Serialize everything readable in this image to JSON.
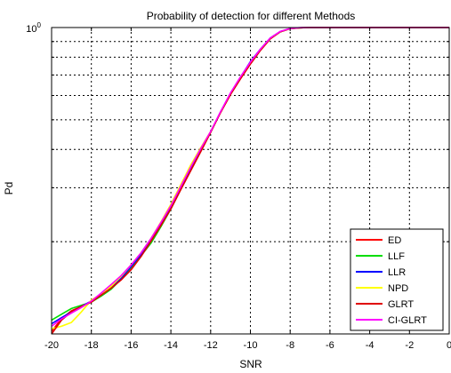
{
  "chart_data": {
    "type": "line",
    "title": "Probability of detection for different Methods",
    "xlabel": "SNR",
    "ylabel": "Pd",
    "xlim": [
      -20,
      0
    ],
    "ylim_log": [
      0.1,
      1
    ],
    "yscale": "log",
    "grid": true,
    "x_ticks": [
      "-20",
      "-18",
      "-16",
      "-14",
      "-12",
      "-10",
      "-8",
      "-6",
      "-4",
      "-2",
      "0"
    ],
    "x_tick_values": [
      -20,
      -18,
      -16,
      -14,
      -12,
      -10,
      -8,
      -6,
      -4,
      -2,
      0
    ],
    "y_ticks": [
      {
        "base": "10",
        "exp": "0",
        "value": 1
      }
    ],
    "y_grid_values": [
      0.9,
      0.8,
      0.7,
      0.6,
      0.5,
      0.4,
      0.3,
      0.2
    ],
    "legend_position": "bottom-right",
    "series": [
      {
        "name": "ED",
        "color": "#ff0000",
        "x": [
          -20,
          -19.5,
          -19,
          -18.5,
          -18,
          -17.5,
          -17,
          -16.5,
          -16,
          -15.5,
          -15,
          -14.5,
          -14,
          -13.5,
          -13,
          -12.5,
          -12,
          -11.5,
          -11,
          -10.5,
          -10,
          -9.5,
          -9,
          -8.5,
          -8,
          -7.5,
          -7,
          -6,
          -5,
          -4,
          -3,
          -2,
          -1,
          0
        ],
        "y": [
          0.102,
          0.112,
          0.119,
          0.123,
          0.127,
          0.134,
          0.142,
          0.15,
          0.163,
          0.18,
          0.202,
          0.227,
          0.257,
          0.297,
          0.342,
          0.394,
          0.456,
          0.529,
          0.605,
          0.681,
          0.761,
          0.843,
          0.92,
          0.968,
          0.992,
          0.998,
          1.0,
          1.0,
          1.0,
          1.0,
          1.0,
          1.0,
          1.0,
          1.0
        ]
      },
      {
        "name": "LLF",
        "color": "#00dd00",
        "x": [
          -20,
          -19.5,
          -19,
          -18.5,
          -18,
          -17.5,
          -17,
          -16.5,
          -16,
          -15.5,
          -15,
          -14.5,
          -14,
          -13.5,
          -13,
          -12.5,
          -12,
          -11.5,
          -11,
          -10.5,
          -10,
          -9.5,
          -9,
          -8.5,
          -8,
          -7.5,
          -7,
          -6,
          -5,
          -4,
          -3,
          -2,
          -1,
          0
        ],
        "y": [
          0.111,
          0.116,
          0.121,
          0.124,
          0.127,
          0.133,
          0.14,
          0.151,
          0.165,
          0.18,
          0.198,
          0.224,
          0.256,
          0.297,
          0.346,
          0.398,
          0.456,
          0.531,
          0.608,
          0.683,
          0.764,
          0.845,
          0.921,
          0.968,
          0.992,
          0.998,
          1.0,
          1.0,
          1.0,
          1.0,
          1.0,
          1.0,
          1.0,
          1.0
        ]
      },
      {
        "name": "LLR",
        "color": "#0000ff",
        "x": [
          -20,
          -19.5,
          -19,
          -18.5,
          -18,
          -17.5,
          -17,
          -16.5,
          -16,
          -15.5,
          -15,
          -14.5,
          -14,
          -13.5,
          -13,
          -12.5,
          -12,
          -11.5,
          -11,
          -10.5,
          -10,
          -9.5,
          -9,
          -8.5,
          -8,
          -7.5,
          -7,
          -6,
          -5,
          -4,
          -3,
          -2,
          -1,
          0
        ],
        "y": [
          0.108,
          0.113,
          0.118,
          0.123,
          0.128,
          0.134,
          0.142,
          0.152,
          0.166,
          0.182,
          0.203,
          0.229,
          0.258,
          0.298,
          0.345,
          0.397,
          0.456,
          0.53,
          0.61,
          0.688,
          0.774,
          0.85,
          0.925,
          0.97,
          0.993,
          0.998,
          1.0,
          1.0,
          1.0,
          1.0,
          1.0,
          1.0,
          1.0,
          1.0
        ]
      },
      {
        "name": "NPD",
        "color": "#ffff00",
        "x": [
          -20,
          -19.5,
          -19,
          -18.5,
          -18,
          -17.5,
          -17,
          -16.5,
          -16,
          -15.5,
          -15,
          -14.5,
          -14,
          -13.5,
          -13,
          -12.5,
          -12,
          -11.5,
          -11,
          -10.5,
          -10,
          -9.5,
          -9,
          -8.5,
          -8,
          -7.5,
          -7,
          -6,
          -5,
          -4,
          -3,
          -2,
          -1,
          0
        ],
        "y": [
          0.104,
          0.106,
          0.109,
          0.118,
          0.129,
          0.135,
          0.143,
          0.154,
          0.168,
          0.184,
          0.205,
          0.232,
          0.265,
          0.307,
          0.356,
          0.405,
          0.458,
          0.53,
          0.606,
          0.683,
          0.765,
          0.847,
          0.922,
          0.969,
          0.992,
          0.998,
          1.0,
          1.0,
          1.0,
          1.0,
          1.0,
          1.0,
          1.0,
          1.0
        ]
      },
      {
        "name": "GLRT",
        "color": "#e00000",
        "x": [
          -20,
          -19.5,
          -19,
          -18.5,
          -18,
          -17.5,
          -17,
          -16.5,
          -16,
          -15.5,
          -15,
          -14.5,
          -14,
          -13.5,
          -13,
          -12.5,
          -12,
          -11.5,
          -11,
          -10.5,
          -10,
          -9.5,
          -9,
          -8.5,
          -8,
          -7.5,
          -7,
          -6,
          -5,
          -4,
          -3,
          -2,
          -1,
          0
        ],
        "y": [
          0.1,
          0.111,
          0.118,
          0.123,
          0.127,
          0.134,
          0.141,
          0.15,
          0.162,
          0.179,
          0.201,
          0.226,
          0.256,
          0.296,
          0.341,
          0.393,
          0.455,
          0.528,
          0.604,
          0.68,
          0.76,
          0.842,
          0.919,
          0.968,
          0.992,
          0.998,
          1.0,
          1.0,
          1.0,
          1.0,
          1.0,
          1.0,
          1.0,
          1.0
        ]
      },
      {
        "name": "CI-GLRT",
        "color": "#ff00ff",
        "x": [
          -20,
          -19.5,
          -19,
          -18.5,
          -18,
          -17.5,
          -17,
          -16.5,
          -16,
          -15.5,
          -15,
          -14.5,
          -14,
          -13.5,
          -13,
          -12.5,
          -12,
          -11.5,
          -11,
          -10.5,
          -10,
          -9.5,
          -9,
          -8.5,
          -8,
          -7.5,
          -7,
          -6,
          -5,
          -4,
          -3,
          -2,
          -1,
          0
        ],
        "y": [
          0.106,
          0.112,
          0.117,
          0.122,
          0.128,
          0.136,
          0.145,
          0.155,
          0.168,
          0.184,
          0.205,
          0.231,
          0.262,
          0.303,
          0.35,
          0.402,
          0.458,
          0.532,
          0.612,
          0.69,
          0.771,
          0.85,
          0.925,
          0.971,
          0.993,
          0.999,
          1.0,
          1.0,
          1.0,
          1.0,
          1.0,
          1.0,
          1.0,
          1.0
        ]
      }
    ]
  }
}
